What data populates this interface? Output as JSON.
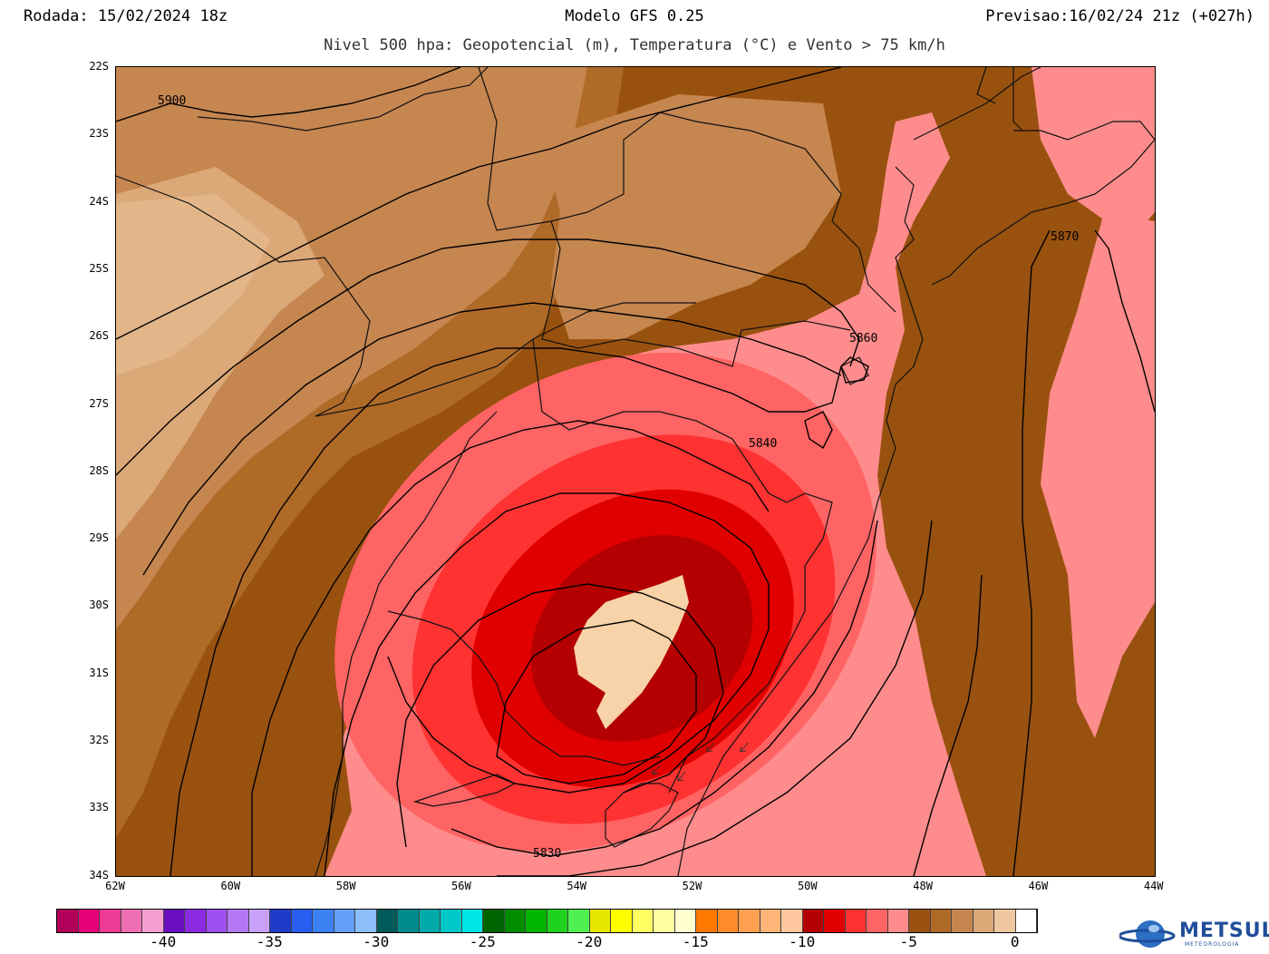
{
  "header": {
    "run": "Rodada: 15/02/2024 18z",
    "model": "Modelo GFS 0.25",
    "forecast": "Previsao:16/02/24 21z (+027h)",
    "subtitle": "Nivel 500 hpa: Geopotencial (m), Temperatura (°C) e Vento > 75 km/h"
  },
  "axes": {
    "lat_labels": [
      "22S",
      "23S",
      "24S",
      "25S",
      "26S",
      "27S",
      "28S",
      "29S",
      "30S",
      "31S",
      "32S",
      "33S",
      "34S"
    ],
    "lon_labels": [
      "62W",
      "60W",
      "58W",
      "56W",
      "54W",
      "52W",
      "50W",
      "48W",
      "46W",
      "44W"
    ]
  },
  "contours": {
    "c5900": "5900",
    "c5870": "5870",
    "c5860": "5860",
    "c5840": "5840",
    "c5830": "5830"
  },
  "colorbar": {
    "labels": [
      "-40",
      "-35",
      "-30",
      "-25",
      "-20",
      "-15",
      "-10",
      "-5",
      "0"
    ],
    "colors": [
      "#b0005a",
      "#e6007a",
      "#ee3c96",
      "#f06eb4",
      "#f49fd0",
      "#6a0fbf",
      "#8a2be2",
      "#a050f0",
      "#b478f5",
      "#c8a0fa",
      "#1e3cc8",
      "#285ff0",
      "#3c82f5",
      "#64a0fa",
      "#8cbefa",
      "#005a5a",
      "#008c8c",
      "#00aaaa",
      "#00c8c8",
      "#00e6e6",
      "#006400",
      "#008c00",
      "#00b400",
      "#1ed21e",
      "#50f050",
      "#e6e600",
      "#ffff00",
      "#ffff64",
      "#ffffa0",
      "#ffffd2",
      "#ff7800",
      "#ff8c28",
      "#ffa050",
      "#ffb478",
      "#ffc8a0",
      "#b40000",
      "#e10000",
      "#ff3232",
      "#ff6464",
      "#ff8c8c",
      "#9a5212",
      "#b06a28",
      "#c68650",
      "#dba878",
      "#f0c8a0",
      "#ffffff"
    ]
  },
  "logo": {
    "name": "METSUL",
    "tagline": "METEOROLOGIA"
  }
}
